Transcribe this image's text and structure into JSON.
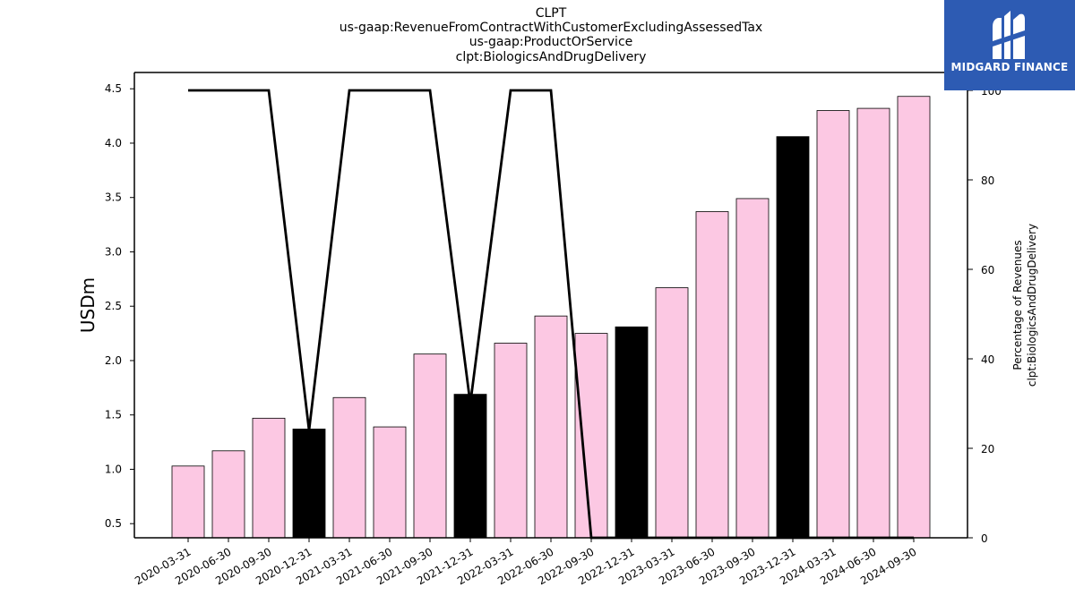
{
  "title": {
    "line1": "CLPT",
    "line2": "us-gaap:RevenueFromContractWithCustomerExcludingAssessedTax",
    "line3": "us-gaap:ProductOrService",
    "line4": "clpt:BiologicsAndDrugDelivery"
  },
  "logo": {
    "text": "MIDGARD FINANCE",
    "bg_color": "#2d5bb3"
  },
  "chart_data": {
    "type": "bar",
    "categories": [
      "2020-03-31",
      "2020-06-30",
      "2020-09-30",
      "2020-12-31",
      "2021-03-31",
      "2021-06-30",
      "2021-09-30",
      "2021-12-31",
      "2022-03-31",
      "2022-06-30",
      "2022-09-30",
      "2022-12-31",
      "2023-03-31",
      "2023-06-30",
      "2023-09-30",
      "2023-12-31",
      "2024-03-31",
      "2024-06-30",
      "2024-09-30"
    ],
    "values": [
      1.03,
      1.17,
      1.47,
      1.37,
      1.66,
      1.39,
      2.06,
      1.69,
      2.16,
      2.41,
      2.25,
      2.31,
      2.67,
      3.37,
      3.49,
      4.06,
      4.3,
      4.32,
      4.43
    ],
    "bar_colors": [
      "#fcc8e3",
      "#fcc8e3",
      "#fcc8e3",
      "#000000",
      "#fcc8e3",
      "#fcc8e3",
      "#fcc8e3",
      "#000000",
      "#fcc8e3",
      "#fcc8e3",
      "#fcc8e3",
      "#000000",
      "#fcc8e3",
      "#fcc8e3",
      "#fcc8e3",
      "#000000",
      "#fcc8e3",
      "#fcc8e3",
      "#fcc8e3"
    ],
    "ylabel": "USDm",
    "ylim": [
      0.37,
      4.65
    ],
    "yticks": [
      "0.5",
      "1.0",
      "1.5",
      "2.0",
      "2.5",
      "3.0",
      "3.5",
      "4.0",
      "4.5"
    ],
    "secondary": {
      "type": "line",
      "ylabel_line1": "Percentage of Revenues",
      "ylabel_line2": "clpt:BiologicsAndDrugDelivery",
      "values": [
        100,
        100,
        100,
        24,
        100,
        100,
        100,
        30,
        100,
        100,
        0,
        0,
        0,
        0,
        0,
        0,
        0,
        0,
        0
      ],
      "ylim": [
        0,
        104
      ],
      "yticks": [
        "0",
        "20",
        "40",
        "60",
        "80",
        "100"
      ],
      "color": "#000000"
    },
    "grid": false,
    "legend": "none"
  }
}
